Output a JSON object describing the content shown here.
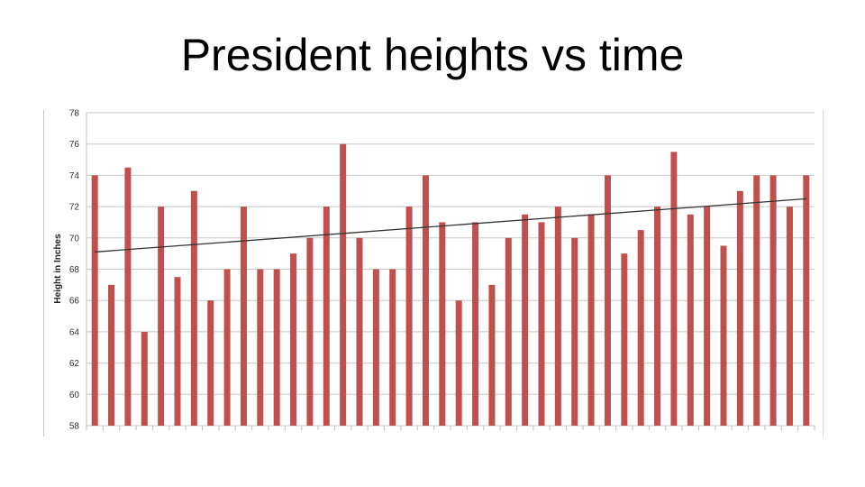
{
  "slide": {
    "title": "President heights vs time"
  },
  "chart_data": {
    "type": "bar",
    "title": "",
    "xlabel": "",
    "ylabel": "Height in Inches",
    "ylim": [
      58,
      78
    ],
    "y_ticks": [
      58,
      60,
      62,
      64,
      66,
      68,
      70,
      72,
      74,
      76,
      78
    ],
    "grid": true,
    "legend": "none",
    "bar_color": "#c0504d",
    "trendline_color": "#333333",
    "values": [
      74,
      67,
      74.5,
      64,
      72,
      67.5,
      73,
      66,
      68,
      72,
      68,
      68,
      69,
      70,
      72,
      76,
      70,
      68,
      68,
      72,
      74,
      71,
      66,
      71,
      67,
      70,
      71.5,
      71,
      72,
      70,
      71.5,
      74,
      69,
      70.5,
      72,
      75.5,
      71.5,
      72,
      69.5,
      73,
      74,
      74,
      72,
      74
    ],
    "trendline": {
      "type": "linear",
      "start": 69.1,
      "end": 72.5
    }
  }
}
